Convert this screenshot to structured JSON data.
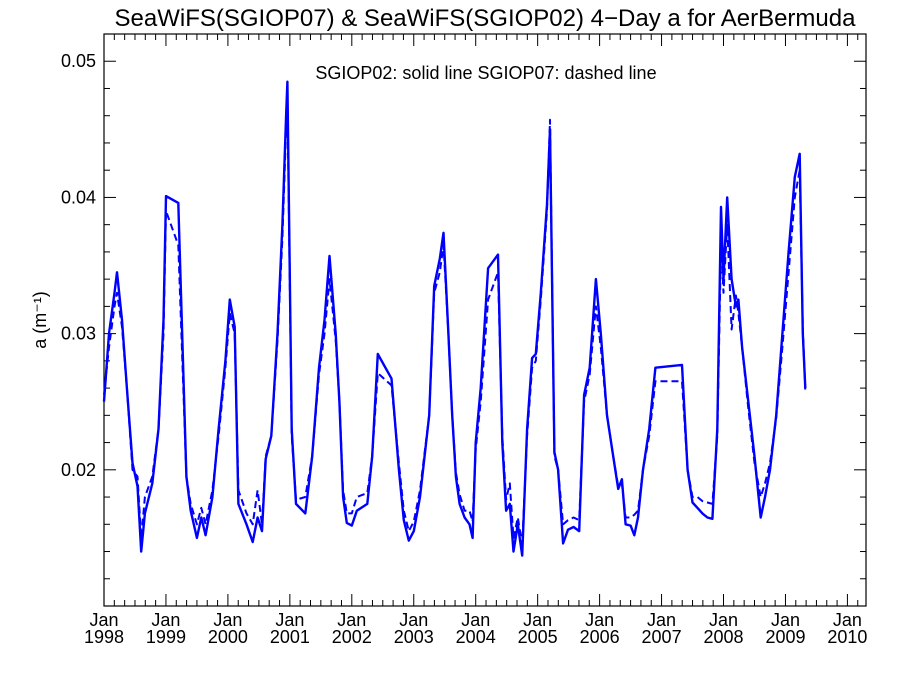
{
  "chart_data": {
    "type": "line",
    "title": "SeaWiFS(SGIOP07) & SeaWiFS(SGIOP02) 4−Day a for AerBermuda",
    "annotation": "SGIOP02: solid line   SGIOP07: dashed line",
    "xlabel": "",
    "ylabel": "a (m⁻¹)",
    "ylim": [
      0.01,
      0.052
    ],
    "xlim": [
      1998.0,
      2010.3
    ],
    "grid": false,
    "x_ticks": [
      {
        "pos": 1998,
        "month": "Jan",
        "year": "1998"
      },
      {
        "pos": 1999,
        "month": "Jan",
        "year": "1999"
      },
      {
        "pos": 2000,
        "month": "Jan",
        "year": "2000"
      },
      {
        "pos": 2001,
        "month": "Jan",
        "year": "2001"
      },
      {
        "pos": 2002,
        "month": "Jan",
        "year": "2002"
      },
      {
        "pos": 2003,
        "month": "Jan",
        "year": "2003"
      },
      {
        "pos": 2004,
        "month": "Jan",
        "year": "2004"
      },
      {
        "pos": 2005,
        "month": "Jan",
        "year": "2005"
      },
      {
        "pos": 2006,
        "month": "Jan",
        "year": "2006"
      },
      {
        "pos": 2007,
        "month": "Jan",
        "year": "2007"
      },
      {
        "pos": 2008,
        "month": "Jan",
        "year": "2008"
      },
      {
        "pos": 2009,
        "month": "Jan",
        "year": "2009"
      },
      {
        "pos": 2010,
        "month": "Jan",
        "year": "2010"
      }
    ],
    "y_ticks": [
      {
        "value": 0.02,
        "label": "0.02"
      },
      {
        "value": 0.03,
        "label": "0.03"
      },
      {
        "value": 0.04,
        "label": "0.04"
      },
      {
        "value": 0.05,
        "label": "0.05"
      }
    ],
    "color": "#0000ff",
    "series": [
      {
        "name": "SGIOP02",
        "style": "solid",
        "points": [
          [
            1998.0,
            0.025
          ],
          [
            1998.08,
            0.03
          ],
          [
            1998.17,
            0.033
          ],
          [
            1998.21,
            0.0345
          ],
          [
            1998.29,
            0.031
          ],
          [
            1998.37,
            0.026
          ],
          [
            1998.46,
            0.0205
          ],
          [
            1998.54,
            0.0188
          ],
          [
            1998.6,
            0.014
          ],
          [
            1998.66,
            0.0168
          ],
          [
            1998.78,
            0.019
          ],
          [
            1998.88,
            0.023
          ],
          [
            1998.96,
            0.031
          ],
          [
            1999.0,
            0.0401
          ],
          [
            1999.2,
            0.0396
          ],
          [
            1999.33,
            0.0195
          ],
          [
            1999.4,
            0.017
          ],
          [
            1999.5,
            0.015
          ],
          [
            1999.57,
            0.0165
          ],
          [
            1999.64,
            0.0152
          ],
          [
            1999.75,
            0.018
          ],
          [
            1999.85,
            0.023
          ],
          [
            1999.96,
            0.028
          ],
          [
            2000.03,
            0.0325
          ],
          [
            2000.11,
            0.0305
          ],
          [
            2000.17,
            0.0175
          ],
          [
            2000.3,
            0.016
          ],
          [
            2000.4,
            0.0147
          ],
          [
            2000.48,
            0.0165
          ],
          [
            2000.55,
            0.0155
          ],
          [
            2000.61,
            0.0208
          ],
          [
            2000.7,
            0.0225
          ],
          [
            2000.8,
            0.03
          ],
          [
            2000.88,
            0.038
          ],
          [
            2000.94,
            0.046
          ],
          [
            2000.96,
            0.0485
          ],
          [
            2001.03,
            0.023
          ],
          [
            2001.1,
            0.0175
          ],
          [
            2001.25,
            0.0168
          ],
          [
            2001.36,
            0.021
          ],
          [
            2001.47,
            0.0275
          ],
          [
            2001.56,
            0.031
          ],
          [
            2001.64,
            0.0357
          ],
          [
            2001.74,
            0.03
          ],
          [
            2001.8,
            0.025
          ],
          [
            2001.86,
            0.018
          ],
          [
            2001.92,
            0.0161
          ],
          [
            2002.0,
            0.0159
          ],
          [
            2002.08,
            0.017
          ],
          [
            2002.25,
            0.0175
          ],
          [
            2002.33,
            0.021
          ],
          [
            2002.42,
            0.0285
          ],
          [
            2002.64,
            0.0267
          ],
          [
            2002.76,
            0.02
          ],
          [
            2002.84,
            0.0163
          ],
          [
            2002.92,
            0.0148
          ],
          [
            2003.0,
            0.0155
          ],
          [
            2003.1,
            0.018
          ],
          [
            2003.25,
            0.024
          ],
          [
            2003.33,
            0.0335
          ],
          [
            2003.42,
            0.0355
          ],
          [
            2003.48,
            0.0374
          ],
          [
            2003.56,
            0.03
          ],
          [
            2003.62,
            0.024
          ],
          [
            2003.68,
            0.0195
          ],
          [
            2003.74,
            0.0175
          ],
          [
            2003.82,
            0.0165
          ],
          [
            2003.9,
            0.016
          ],
          [
            2003.95,
            0.015
          ],
          [
            2004.0,
            0.022
          ],
          [
            2004.08,
            0.026
          ],
          [
            2004.2,
            0.0348
          ],
          [
            2004.36,
            0.0358
          ],
          [
            2004.43,
            0.022
          ],
          [
            2004.49,
            0.017
          ],
          [
            2004.55,
            0.0175
          ],
          [
            2004.61,
            0.014
          ],
          [
            2004.68,
            0.016
          ],
          [
            2004.75,
            0.0137
          ],
          [
            2004.83,
            0.023
          ],
          [
            2004.91,
            0.0282
          ],
          [
            2004.97,
            0.0285
          ],
          [
            2005.05,
            0.033
          ],
          [
            2005.15,
            0.0395
          ],
          [
            2005.2,
            0.045
          ],
          [
            2005.27,
            0.0213
          ],
          [
            2005.33,
            0.02
          ],
          [
            2005.41,
            0.0146
          ],
          [
            2005.49,
            0.0156
          ],
          [
            2005.58,
            0.0158
          ],
          [
            2005.67,
            0.0155
          ],
          [
            2005.75,
            0.0255
          ],
          [
            2005.84,
            0.0275
          ],
          [
            2005.94,
            0.034
          ],
          [
            2006.02,
            0.03
          ],
          [
            2006.12,
            0.024
          ],
          [
            2006.22,
            0.021
          ],
          [
            2006.3,
            0.0186
          ],
          [
            2006.36,
            0.0193
          ],
          [
            2006.42,
            0.016
          ],
          [
            2006.5,
            0.0159
          ],
          [
            2006.56,
            0.0152
          ],
          [
            2006.62,
            0.0165
          ],
          [
            2006.7,
            0.02
          ],
          [
            2006.8,
            0.023
          ],
          [
            2006.9,
            0.0275
          ],
          [
            2007.33,
            0.0277
          ],
          [
            2007.42,
            0.02
          ],
          [
            2007.5,
            0.0176
          ],
          [
            2007.58,
            0.0172
          ],
          [
            2007.66,
            0.0168
          ],
          [
            2007.74,
            0.0165
          ],
          [
            2007.82,
            0.0164
          ],
          [
            2007.9,
            0.023
          ],
          [
            2007.96,
            0.0393
          ],
          [
            2008.0,
            0.034
          ],
          [
            2008.06,
            0.04
          ],
          [
            2008.13,
            0.034
          ],
          [
            2008.2,
            0.032
          ],
          [
            2008.24,
            0.0325
          ],
          [
            2008.3,
            0.029
          ],
          [
            2008.4,
            0.025
          ],
          [
            2008.5,
            0.021
          ],
          [
            2008.6,
            0.0165
          ],
          [
            2008.67,
            0.018
          ],
          [
            2008.75,
            0.02
          ],
          [
            2008.85,
            0.024
          ],
          [
            2008.95,
            0.03
          ],
          [
            2009.05,
            0.036
          ],
          [
            2009.15,
            0.0415
          ],
          [
            2009.23,
            0.0432
          ],
          [
            2009.28,
            0.03
          ],
          [
            2009.32,
            0.026
          ]
        ]
      },
      {
        "name": "SGIOP07",
        "style": "dashed",
        "points": [
          [
            1998.0,
            0.0255
          ],
          [
            1998.08,
            0.029
          ],
          [
            1998.17,
            0.032
          ],
          [
            1998.21,
            0.033
          ],
          [
            1998.29,
            0.0305
          ],
          [
            1998.37,
            0.026
          ],
          [
            1998.46,
            0.02
          ],
          [
            1998.54,
            0.0195
          ],
          [
            1998.6,
            0.015
          ],
          [
            1998.66,
            0.018
          ],
          [
            1998.78,
            0.0195
          ],
          [
            1998.88,
            0.023
          ],
          [
            1998.96,
            0.03
          ],
          [
            1999.0,
            0.039
          ],
          [
            1999.2,
            0.0365
          ],
          [
            1999.33,
            0.0195
          ],
          [
            1999.4,
            0.0175
          ],
          [
            1999.5,
            0.016
          ],
          [
            1999.57,
            0.0172
          ],
          [
            1999.64,
            0.016
          ],
          [
            1999.75,
            0.0185
          ],
          [
            1999.85,
            0.0225
          ],
          [
            1999.96,
            0.0275
          ],
          [
            2000.03,
            0.0315
          ],
          [
            2000.11,
            0.03
          ],
          [
            2000.17,
            0.0185
          ],
          [
            2000.3,
            0.0168
          ],
          [
            2000.4,
            0.016
          ],
          [
            2000.48,
            0.0185
          ],
          [
            2000.55,
            0.016
          ],
          [
            2000.61,
            0.021
          ],
          [
            2000.7,
            0.0225
          ],
          [
            2000.8,
            0.0295
          ],
          [
            2000.88,
            0.037
          ],
          [
            2000.94,
            0.045
          ],
          [
            2000.96,
            0.0475
          ],
          [
            2001.03,
            0.0225
          ],
          [
            2001.1,
            0.0178
          ],
          [
            2001.25,
            0.018
          ],
          [
            2001.36,
            0.021
          ],
          [
            2001.47,
            0.027
          ],
          [
            2001.56,
            0.03
          ],
          [
            2001.64,
            0.034
          ],
          [
            2001.74,
            0.0295
          ],
          [
            2001.8,
            0.025
          ],
          [
            2001.86,
            0.0185
          ],
          [
            2001.92,
            0.0168
          ],
          [
            2002.0,
            0.0168
          ],
          [
            2002.08,
            0.018
          ],
          [
            2002.25,
            0.0183
          ],
          [
            2002.33,
            0.021
          ],
          [
            2002.42,
            0.0271
          ],
          [
            2002.64,
            0.0262
          ],
          [
            2002.76,
            0.0205
          ],
          [
            2002.84,
            0.017
          ],
          [
            2002.92,
            0.0155
          ],
          [
            2003.0,
            0.0162
          ],
          [
            2003.1,
            0.0185
          ],
          [
            2003.25,
            0.024
          ],
          [
            2003.33,
            0.033
          ],
          [
            2003.42,
            0.0345
          ],
          [
            2003.48,
            0.0365
          ],
          [
            2003.56,
            0.03
          ],
          [
            2003.62,
            0.024
          ],
          [
            2003.68,
            0.0198
          ],
          [
            2003.74,
            0.0182
          ],
          [
            2003.82,
            0.017
          ],
          [
            2003.9,
            0.017
          ],
          [
            2003.95,
            0.0162
          ],
          [
            2004.0,
            0.0215
          ],
          [
            2004.08,
            0.025
          ],
          [
            2004.2,
            0.0325
          ],
          [
            2004.36,
            0.0345
          ],
          [
            2004.43,
            0.0225
          ],
          [
            2004.49,
            0.0178
          ],
          [
            2004.55,
            0.019
          ],
          [
            2004.61,
            0.015
          ],
          [
            2004.68,
            0.0165
          ],
          [
            2004.75,
            0.0145
          ],
          [
            2004.83,
            0.0225
          ],
          [
            2004.91,
            0.0275
          ],
          [
            2004.97,
            0.028
          ],
          [
            2005.05,
            0.0325
          ],
          [
            2005.15,
            0.039
          ],
          [
            2005.2,
            0.0457
          ],
          [
            2005.27,
            0.021
          ],
          [
            2005.33,
            0.02
          ],
          [
            2005.41,
            0.016
          ],
          [
            2005.49,
            0.0163
          ],
          [
            2005.58,
            0.0165
          ],
          [
            2005.67,
            0.0163
          ],
          [
            2005.75,
            0.025
          ],
          [
            2005.84,
            0.027
          ],
          [
            2005.94,
            0.032
          ],
          [
            2006.02,
            0.029
          ],
          [
            2006.12,
            0.024
          ],
          [
            2006.22,
            0.021
          ],
          [
            2006.3,
            0.0188
          ],
          [
            2006.36,
            0.019
          ],
          [
            2006.42,
            0.0165
          ],
          [
            2006.5,
            0.0165
          ],
          [
            2006.56,
            0.0167
          ],
          [
            2006.62,
            0.017
          ],
          [
            2006.7,
            0.02
          ],
          [
            2006.8,
            0.0225
          ],
          [
            2006.9,
            0.0265
          ],
          [
            2007.33,
            0.0265
          ],
          [
            2007.42,
            0.02
          ],
          [
            2007.5,
            0.018
          ],
          [
            2007.58,
            0.018
          ],
          [
            2007.66,
            0.0177
          ],
          [
            2007.74,
            0.0176
          ],
          [
            2007.82,
            0.0175
          ],
          [
            2007.9,
            0.0225
          ],
          [
            2007.96,
            0.0365
          ],
          [
            2008.0,
            0.033
          ],
          [
            2008.06,
            0.038
          ],
          [
            2008.13,
            0.0303
          ],
          [
            2008.2,
            0.0328
          ],
          [
            2008.24,
            0.0315
          ],
          [
            2008.3,
            0.029
          ],
          [
            2008.4,
            0.0245
          ],
          [
            2008.5,
            0.0205
          ],
          [
            2008.6,
            0.018
          ],
          [
            2008.67,
            0.019
          ],
          [
            2008.75,
            0.0205
          ],
          [
            2008.85,
            0.0238
          ],
          [
            2008.95,
            0.029
          ],
          [
            2009.05,
            0.0345
          ],
          [
            2009.15,
            0.04
          ],
          [
            2009.23,
            0.042
          ],
          [
            2009.28,
            0.0305
          ],
          [
            2009.32,
            0.0258
          ]
        ]
      }
    ]
  }
}
